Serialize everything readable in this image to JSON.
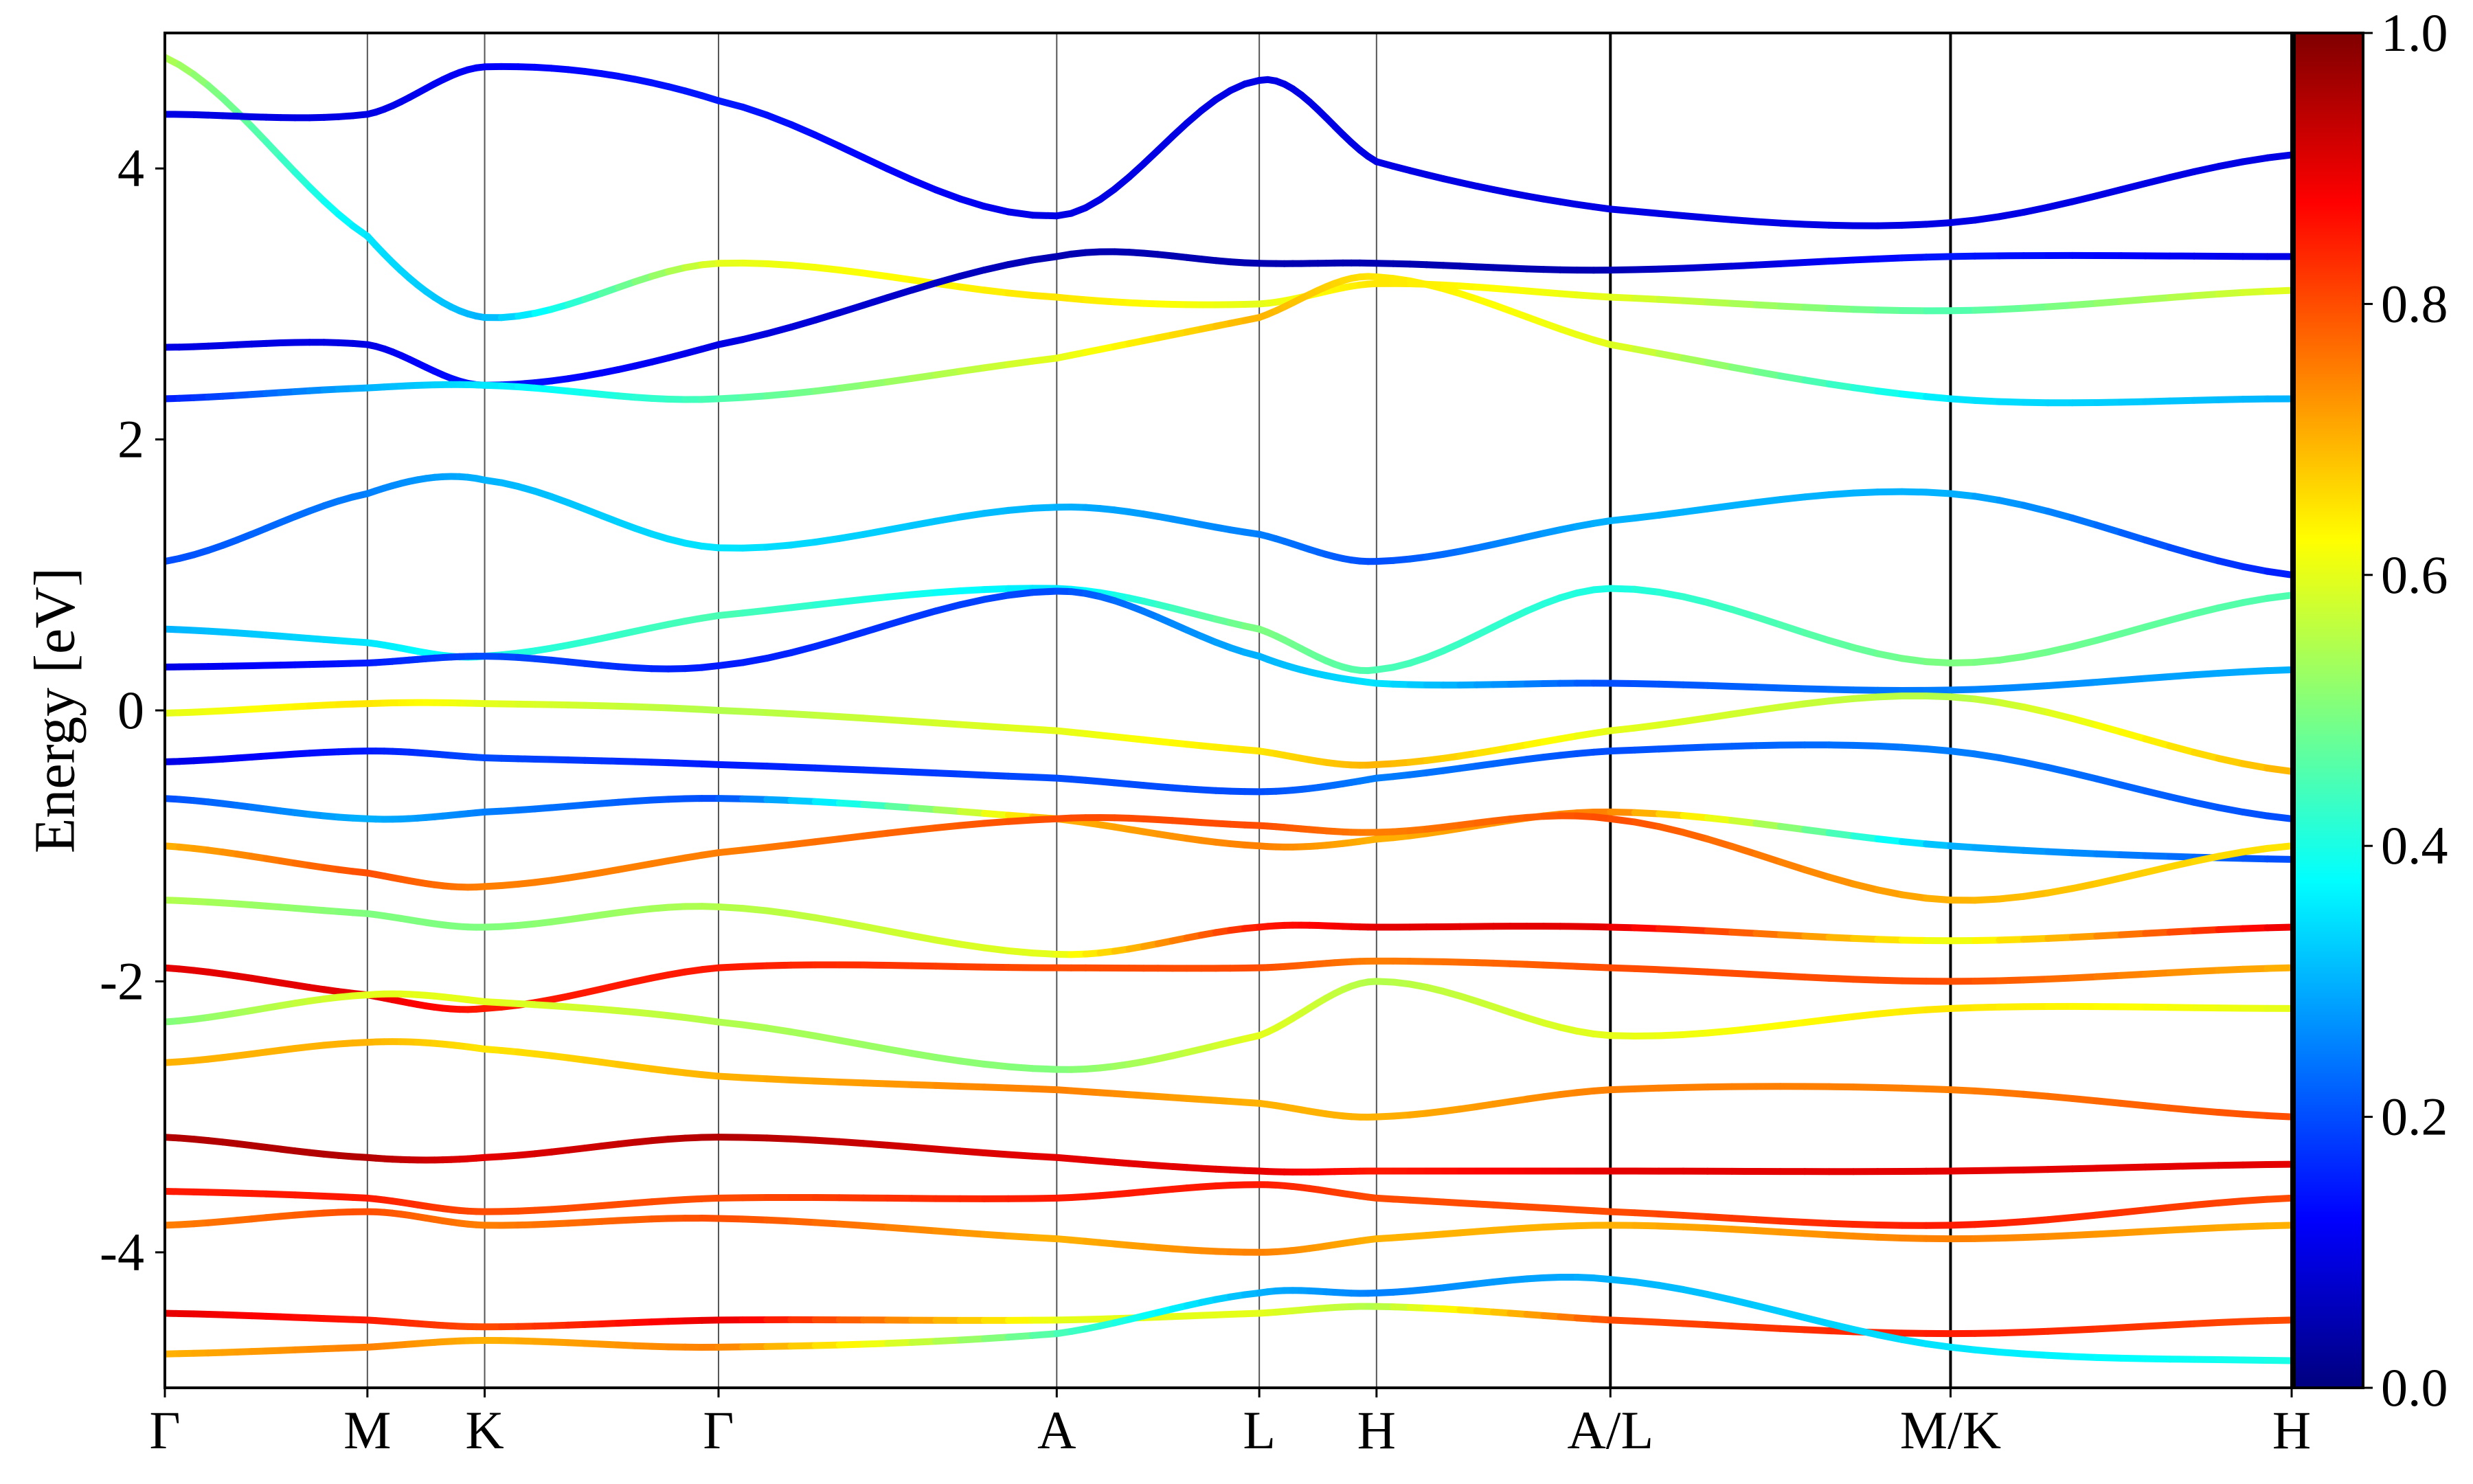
{
  "chart_data": {
    "type": "line",
    "title": "",
    "xlabel": "",
    "ylabel": "Energy [eV]",
    "ylim": [
      -5,
      5
    ],
    "yticks": [
      -4,
      -2,
      0,
      2,
      4
    ],
    "ytick_labels": [
      "-4",
      "-2",
      "0",
      "2",
      "4"
    ],
    "grid": false,
    "legend": "none",
    "kpath": {
      "labels": [
        "Γ",
        "M",
        "K",
        "Γ",
        "A",
        "L",
        "H",
        "A/L",
        "M/K",
        "H"
      ],
      "x": [
        0,
        0.627,
        0.99,
        1.714,
        2.761,
        3.388,
        3.751,
        4.475,
        5.528,
        6.584
      ],
      "discontinuities_at": [
        "A/L",
        "M/K"
      ]
    },
    "colorbar": {
      "colormap": "jet",
      "range": [
        0.0,
        1.0
      ],
      "ticks": [
        0.0,
        0.2,
        0.4,
        0.6,
        0.8,
        1.0
      ],
      "tick_labels": [
        "0.0",
        "0.2",
        "0.4",
        "0.6",
        "0.8",
        "1.0"
      ],
      "colors": [
        "#00007f",
        "#0000ff",
        "#007fff",
        "#00ffff",
        "#7fff7f",
        "#ffff00",
        "#ff7f00",
        "#ff0000",
        "#7f0000"
      ]
    },
    "series": [
      {
        "energies": [
          4.82,
          3.5,
          2.9,
          3.3,
          3.05,
          3.0,
          3.15,
          3.05,
          2.95,
          3.1
        ],
        "weights": [
          0.55,
          0.35,
          0.3,
          0.6,
          0.65,
          0.6,
          0.65,
          0.6,
          0.45,
          0.6
        ]
      },
      {
        "energies": [
          2.68,
          2.7,
          2.4,
          2.7,
          3.35,
          3.3,
          3.3,
          3.25,
          3.35,
          3.35
        ],
        "weights": [
          0.1,
          0.1,
          0.15,
          0.1,
          0.05,
          0.05,
          0.05,
          0.05,
          0.15,
          0.1
        ]
      },
      {
        "energies": [
          2.3,
          2.38,
          2.4,
          2.3,
          2.6,
          2.9,
          3.2,
          2.7,
          2.3,
          2.3
        ],
        "weights": [
          0.15,
          0.3,
          0.35,
          0.45,
          0.6,
          0.7,
          0.65,
          0.6,
          0.35,
          0.3
        ]
      },
      {
        "energies": [
          1.1,
          1.6,
          1.7,
          1.2,
          1.5,
          1.3,
          1.1,
          1.4,
          1.6,
          1.0
        ],
        "weights": [
          0.2,
          0.25,
          0.3,
          0.35,
          0.3,
          0.25,
          0.2,
          0.3,
          0.3,
          0.15
        ]
      },
      {
        "energies": [
          0.6,
          0.5,
          0.4,
          0.7,
          0.9,
          0.6,
          0.3,
          0.9,
          0.35,
          0.85
        ],
        "weights": [
          0.3,
          0.35,
          0.4,
          0.45,
          0.35,
          0.5,
          0.45,
          0.4,
          0.5,
          0.45
        ]
      },
      {
        "energies": [
          0.32,
          0.35,
          0.4,
          0.33,
          0.88,
          0.4,
          0.2,
          0.2,
          0.15,
          0.3
        ],
        "weights": [
          0.1,
          0.15,
          0.2,
          0.15,
          0.2,
          0.3,
          0.35,
          0.2,
          0.25,
          0.3
        ]
      },
      {
        "energies": [
          -0.02,
          0.05,
          0.05,
          0.0,
          -0.15,
          -0.3,
          -0.4,
          -0.15,
          0.1,
          -0.45
        ],
        "weights": [
          0.6,
          0.65,
          0.6,
          0.55,
          0.6,
          0.65,
          0.7,
          0.6,
          0.55,
          0.7
        ]
      },
      {
        "energies": [
          -0.38,
          -0.3,
          -0.35,
          -0.4,
          -0.5,
          -0.6,
          -0.5,
          -0.3,
          -0.3,
          -0.8
        ],
        "weights": [
          0.1,
          0.15,
          0.2,
          0.15,
          0.2,
          0.2,
          0.25,
          0.2,
          0.25,
          0.2
        ]
      },
      {
        "energies": [
          -0.65,
          -0.8,
          -0.75,
          -0.65,
          -0.8,
          -1.0,
          -0.95,
          -0.75,
          -1.0,
          -1.1
        ],
        "weights": [
          0.2,
          0.3,
          0.25,
          0.2,
          0.7,
          0.75,
          0.7,
          0.75,
          0.3,
          0.2
        ]
      },
      {
        "energies": [
          -1.0,
          -1.2,
          -1.3,
          -1.05,
          -0.8,
          -0.85,
          -0.9,
          -0.8,
          -1.4,
          -1.0
        ],
        "weights": [
          0.7,
          0.8,
          0.75,
          0.75,
          0.8,
          0.8,
          0.75,
          0.8,
          0.7,
          0.65
        ]
      },
      {
        "energies": [
          -1.4,
          -1.5,
          -1.6,
          -1.45,
          -1.8,
          -1.6,
          -1.6,
          -1.6,
          -1.7,
          -1.6
        ],
        "weights": [
          0.55,
          0.5,
          0.5,
          0.55,
          0.6,
          0.85,
          0.9,
          0.9,
          0.6,
          0.9
        ]
      },
      {
        "energies": [
          -1.9,
          -2.1,
          -2.2,
          -1.9,
          -1.9,
          -1.9,
          -1.85,
          -1.9,
          -2.0,
          -1.9
        ],
        "weights": [
          0.9,
          0.9,
          0.85,
          0.85,
          0.8,
          0.8,
          0.75,
          0.8,
          0.8,
          0.7
        ]
      },
      {
        "energies": [
          -2.3,
          -2.1,
          -2.15,
          -2.3,
          -2.65,
          -2.4,
          -2.0,
          -2.4,
          -2.2,
          -2.2
        ],
        "weights": [
          0.5,
          0.6,
          0.6,
          0.55,
          0.5,
          0.6,
          0.55,
          0.6,
          0.65,
          0.6
        ]
      },
      {
        "energies": [
          -2.6,
          -2.45,
          -2.5,
          -2.7,
          -2.8,
          -2.9,
          -3.0,
          -2.8,
          -2.8,
          -3.0
        ],
        "weights": [
          0.7,
          0.7,
          0.65,
          0.7,
          0.75,
          0.7,
          0.7,
          0.75,
          0.75,
          0.8
        ]
      },
      {
        "energies": [
          -3.15,
          -3.3,
          -3.3,
          -3.15,
          -3.3,
          -3.4,
          -3.4,
          -3.4,
          -3.4,
          -3.35
        ],
        "weights": [
          0.95,
          0.95,
          0.9,
          0.95,
          0.9,
          0.9,
          0.85,
          0.9,
          0.9,
          0.9
        ]
      },
      {
        "energies": [
          -3.55,
          -3.6,
          -3.7,
          -3.6,
          -3.6,
          -3.5,
          -3.6,
          -3.7,
          -3.8,
          -3.6
        ],
        "weights": [
          0.85,
          0.85,
          0.8,
          0.8,
          0.85,
          0.85,
          0.8,
          0.8,
          0.85,
          0.8
        ]
      },
      {
        "energies": [
          -3.8,
          -3.7,
          -3.8,
          -3.75,
          -3.9,
          -4.0,
          -3.9,
          -3.8,
          -3.9,
          -3.8
        ],
        "weights": [
          0.75,
          0.8,
          0.75,
          0.8,
          0.7,
          0.75,
          0.7,
          0.7,
          0.75,
          0.7
        ]
      },
      {
        "energies": [
          -4.45,
          -4.5,
          -4.55,
          -4.5,
          -4.5,
          -4.45,
          -4.4,
          -4.5,
          -4.6,
          -4.5
        ],
        "weights": [
          0.9,
          0.85,
          0.8,
          0.9,
          0.6,
          0.6,
          0.55,
          0.8,
          0.85,
          0.8
        ]
      },
      {
        "energies": [
          -4.75,
          -4.7,
          -4.65,
          -4.7,
          -4.6,
          -4.3,
          -4.3,
          -4.2,
          -4.7,
          -4.8
        ],
        "weights": [
          0.7,
          0.75,
          0.7,
          0.75,
          0.45,
          0.3,
          0.25,
          0.3,
          0.35,
          0.4
        ]
      },
      {
        "energies": [
          4.4,
          4.4,
          4.75,
          4.5,
          3.65,
          4.65,
          4.05,
          3.7,
          3.6,
          4.1
        ],
        "weights": [
          0.1,
          0.1,
          0.12,
          0.15,
          0.1,
          0.1,
          0.1,
          0.1,
          0.1,
          0.1
        ]
      }
    ]
  }
}
